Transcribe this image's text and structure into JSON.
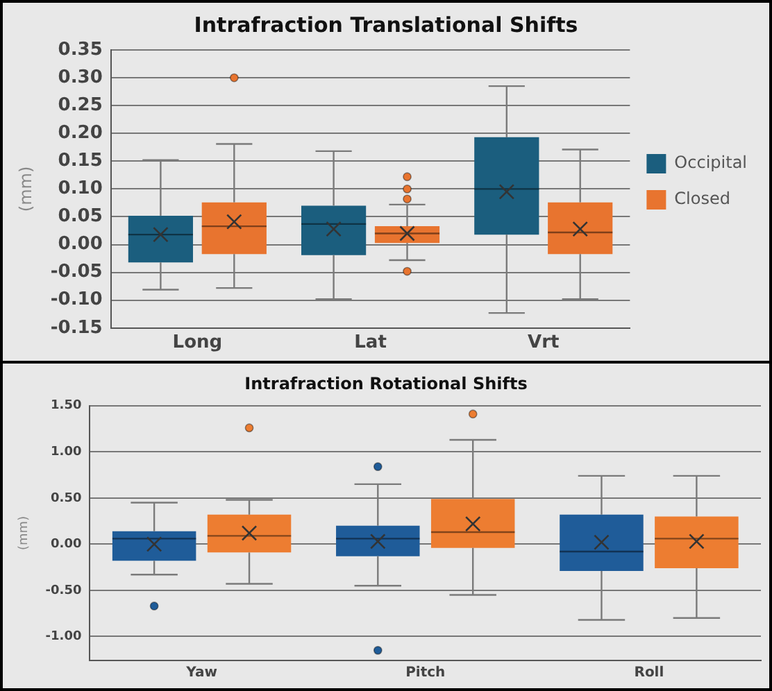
{
  "chart_data": [
    {
      "type": "box",
      "title": "Intrafraction Translational Shifts",
      "ylabel": "(mm)",
      "categories": [
        "Long",
        "Lat",
        "Vrt"
      ],
      "ylim": [
        -0.15,
        0.35
      ],
      "yticks": [
        0.35,
        {
          "value": 0.3,
          "label": "0.30"
        },
        0.25,
        {
          "value": 0.2,
          "label": "0.20"
        },
        0.15,
        {
          "value": 0.1,
          "label": "0.10"
        },
        0.05,
        {
          "value": 0,
          "label": "0.00"
        },
        -0.05,
        {
          "value": -0.1,
          "label": "-0.10"
        },
        -0.15
      ],
      "grid": "y",
      "legend": "right",
      "series": [
        {
          "name": "Occipital",
          "color": "#1b5e7e",
          "boxes": [
            {
              "low": -0.081,
              "q1": -0.032,
              "median": 0.018,
              "q3": 0.052,
              "high": 0.152,
              "mean": 0.018
            },
            {
              "low": -0.098,
              "q1": -0.019,
              "median": 0.037,
              "q3": 0.07,
              "high": 0.168,
              "mean": 0.028
            },
            {
              "low": -0.123,
              "q1": 0.018,
              "median": 0.1,
              "q3": 0.193,
              "high": 0.285,
              "mean": 0.095
            }
          ]
        },
        {
          "name": "Closed",
          "color": "#e8742f",
          "boxes": [
            {
              "low": -0.078,
              "q1": -0.017,
              "median": 0.033,
              "q3": 0.076,
              "high": 0.181,
              "mean": 0.041,
              "outliers": [
                0.3
              ]
            },
            {
              "low": -0.028,
              "q1": 0.003,
              "median": 0.02,
              "q3": 0.033,
              "high": 0.072,
              "mean": 0.02,
              "outliers": [
                0.122,
                0.1,
                0.082,
                -0.048
              ]
            },
            {
              "low": -0.098,
              "q1": -0.017,
              "median": 0.022,
              "q3": 0.076,
              "high": 0.171,
              "mean": 0.028
            }
          ]
        }
      ]
    },
    {
      "type": "box",
      "title": "Intrafraction Rotational Shifts",
      "ylabel": "(mm)",
      "categories": [
        "Yaw",
        "Pitch",
        "Roll"
      ],
      "ylim": [
        -1.26,
        1.5
      ],
      "yticks": [
        {
          "value": 1.5,
          "label": "1.50"
        },
        {
          "value": 1,
          "label": "1.00"
        },
        {
          "value": 0.5,
          "label": "0.50"
        },
        {
          "value": 0,
          "label": "0.00"
        },
        {
          "value": -0.5,
          "label": "-0.50"
        },
        {
          "value": -1,
          "label": "-1.00"
        }
      ],
      "grid": "y",
      "series": [
        {
          "color": "#1f5c99",
          "boxes": [
            {
              "low": -0.33,
              "q1": -0.18,
              "median": 0.06,
              "q3": 0.14,
              "high": 0.45,
              "mean": 0.0,
              "outliers": [
                -0.67
              ]
            },
            {
              "low": -0.45,
              "q1": -0.13,
              "median": 0.06,
              "q3": 0.2,
              "high": 0.65,
              "mean": 0.03,
              "outliers": [
                0.84,
                -1.15
              ]
            },
            {
              "low": -0.82,
              "q1": -0.29,
              "median": -0.08,
              "q3": 0.32,
              "high": 0.74,
              "mean": 0.02
            }
          ]
        },
        {
          "color": "#ed7d31",
          "boxes": [
            {
              "low": -0.43,
              "q1": -0.09,
              "median": 0.09,
              "q3": 0.32,
              "high": 0.48,
              "mean": 0.12,
              "outliers": [
                1.26
              ]
            },
            {
              "low": -0.55,
              "q1": -0.04,
              "median": 0.13,
              "q3": 0.49,
              "high": 1.13,
              "mean": 0.22,
              "outliers": [
                1.41
              ]
            },
            {
              "low": -0.8,
              "q1": -0.26,
              "median": 0.06,
              "q3": 0.3,
              "high": 0.74,
              "mean": 0.03
            }
          ]
        }
      ]
    }
  ]
}
